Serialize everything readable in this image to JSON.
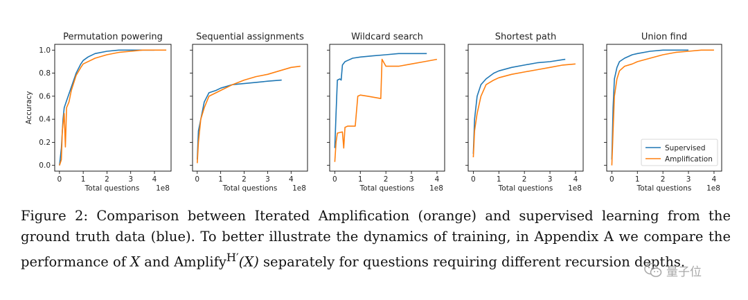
{
  "chart_data": [
    {
      "type": "line",
      "title": "Permutation powering",
      "xlabel": "Total questions",
      "ylabel": "Accuracy",
      "x_multiplier": "1e8",
      "xlim": [
        -0.2,
        4.7
      ],
      "ylim": [
        -0.05,
        1.05
      ],
      "xticks": [
        0,
        1,
        2,
        3,
        4
      ],
      "yticks": [
        0.0,
        0.2,
        0.4,
        0.6,
        0.8,
        1.0
      ],
      "grid": false,
      "series": [
        {
          "color": "#1f77b4",
          "x": [
            0.0,
            0.08,
            0.15,
            0.2,
            0.3,
            0.5,
            0.7,
            0.9,
            1.0,
            1.2,
            1.5,
            2.0,
            2.5,
            3.0,
            3.5,
            4.0
          ],
          "y": [
            0.0,
            0.15,
            0.4,
            0.5,
            0.56,
            0.68,
            0.8,
            0.88,
            0.91,
            0.94,
            0.97,
            0.99,
            1.0,
            1.0,
            1.0,
            1.0
          ]
        },
        {
          "color": "#ff7f0e",
          "x": [
            0.0,
            0.08,
            0.12,
            0.2,
            0.25,
            0.3,
            0.4,
            0.5,
            0.7,
            0.9,
            1.0,
            1.5,
            2.0,
            2.5,
            3.0,
            3.5,
            4.0,
            4.5
          ],
          "y": [
            0.0,
            0.05,
            0.3,
            0.45,
            0.16,
            0.5,
            0.55,
            0.65,
            0.78,
            0.85,
            0.88,
            0.93,
            0.96,
            0.98,
            0.99,
            1.0,
            1.0,
            1.0
          ]
        }
      ]
    },
    {
      "type": "line",
      "title": "Sequential assignments",
      "xlabel": "Total questions",
      "ylabel": "",
      "x_multiplier": "1e8",
      "xlim": [
        -0.2,
        4.7
      ],
      "ylim": [
        -0.05,
        1.05
      ],
      "xticks": [
        0,
        1,
        2,
        3,
        4
      ],
      "yticks": [
        0.0,
        0.2,
        0.4,
        0.6,
        0.8,
        1.0
      ],
      "grid": false,
      "series": [
        {
          "color": "#1f77b4",
          "x": [
            0.0,
            0.05,
            0.1,
            0.2,
            0.3,
            0.5,
            0.8,
            1.0,
            1.5,
            2.0,
            2.5,
            3.0,
            3.6
          ],
          "y": [
            0.05,
            0.3,
            0.35,
            0.45,
            0.55,
            0.63,
            0.65,
            0.67,
            0.7,
            0.71,
            0.72,
            0.73,
            0.74
          ]
        },
        {
          "color": "#ff7f0e",
          "x": [
            0.0,
            0.05,
            0.15,
            0.3,
            0.5,
            0.8,
            1.0,
            1.5,
            2.0,
            2.5,
            3.0,
            3.5,
            4.0,
            4.4
          ],
          "y": [
            0.02,
            0.2,
            0.4,
            0.5,
            0.6,
            0.63,
            0.65,
            0.7,
            0.74,
            0.77,
            0.79,
            0.82,
            0.85,
            0.86
          ]
        }
      ]
    },
    {
      "type": "line",
      "title": "Wildcard search",
      "xlabel": "Total questions",
      "ylabel": "",
      "x_multiplier": "1e8",
      "xlim": [
        -0.2,
        4.3
      ],
      "ylim": [
        -0.05,
        1.05
      ],
      "xticks": [
        0,
        1,
        2,
        3,
        4
      ],
      "yticks": [
        0.0,
        0.2,
        0.4,
        0.6,
        0.8,
        1.0
      ],
      "grid": false,
      "series": [
        {
          "color": "#1f77b4",
          "x": [
            0.0,
            0.05,
            0.1,
            0.2,
            0.25,
            0.3,
            0.4,
            0.5,
            0.7,
            1.0,
            1.5,
            2.0,
            2.5,
            3.0,
            3.6
          ],
          "y": [
            0.15,
            0.45,
            0.74,
            0.75,
            0.74,
            0.87,
            0.9,
            0.91,
            0.93,
            0.94,
            0.95,
            0.96,
            0.97,
            0.97,
            0.97
          ]
        },
        {
          "color": "#ff7f0e",
          "x": [
            0.0,
            0.05,
            0.1,
            0.3,
            0.35,
            0.4,
            0.5,
            0.8,
            0.9,
            1.0,
            1.3,
            1.8,
            1.85,
            2.0,
            2.5,
            3.0,
            3.5,
            4.0
          ],
          "y": [
            0.03,
            0.2,
            0.28,
            0.29,
            0.15,
            0.33,
            0.34,
            0.34,
            0.6,
            0.61,
            0.6,
            0.58,
            0.92,
            0.86,
            0.86,
            0.88,
            0.9,
            0.92
          ]
        }
      ]
    },
    {
      "type": "line",
      "title": "Shortest path",
      "xlabel": "Total questions",
      "ylabel": "",
      "x_multiplier": "1e8",
      "xlim": [
        -0.2,
        4.3
      ],
      "ylim": [
        -0.05,
        1.05
      ],
      "xticks": [
        0,
        1,
        2,
        3,
        4
      ],
      "yticks": [
        0.0,
        0.2,
        0.4,
        0.6,
        0.8,
        1.0
      ],
      "grid": false,
      "series": [
        {
          "color": "#1f77b4",
          "x": [
            0.0,
            0.05,
            0.15,
            0.3,
            0.5,
            0.8,
            1.0,
            1.5,
            2.0,
            2.5,
            3.0,
            3.6
          ],
          "y": [
            0.1,
            0.4,
            0.6,
            0.7,
            0.75,
            0.8,
            0.82,
            0.85,
            0.87,
            0.89,
            0.9,
            0.92
          ]
        },
        {
          "color": "#ff7f0e",
          "x": [
            0.0,
            0.05,
            0.15,
            0.3,
            0.5,
            0.8,
            1.0,
            1.5,
            2.0,
            2.5,
            3.0,
            3.5,
            4.0
          ],
          "y": [
            0.07,
            0.3,
            0.45,
            0.6,
            0.7,
            0.74,
            0.76,
            0.79,
            0.81,
            0.83,
            0.85,
            0.87,
            0.88
          ]
        }
      ]
    },
    {
      "type": "line",
      "title": "Union find",
      "xlabel": "Total questions",
      "ylabel": "",
      "x_multiplier": "1e8",
      "xlim": [
        -0.2,
        4.3
      ],
      "ylim": [
        -0.05,
        1.05
      ],
      "xticks": [
        0,
        1,
        2,
        3,
        4
      ],
      "yticks": [
        0.0,
        0.2,
        0.4,
        0.6,
        0.8,
        1.0
      ],
      "grid": false,
      "legend": {
        "position": "lower-right"
      },
      "series": [
        {
          "name": "Supervised",
          "color": "#1f77b4",
          "x": [
            0.0,
            0.05,
            0.1,
            0.2,
            0.3,
            0.5,
            0.8,
            1.0,
            1.5,
            2.0,
            2.5,
            3.0
          ],
          "y": [
            0.05,
            0.5,
            0.75,
            0.85,
            0.9,
            0.93,
            0.96,
            0.97,
            0.99,
            1.0,
            1.0,
            1.0
          ]
        },
        {
          "name": "Amplification",
          "color": "#ff7f0e",
          "x": [
            0.0,
            0.05,
            0.1,
            0.2,
            0.3,
            0.5,
            0.8,
            1.0,
            1.5,
            2.0,
            2.5,
            3.0,
            3.5,
            4.0
          ],
          "y": [
            0.0,
            0.3,
            0.6,
            0.75,
            0.82,
            0.86,
            0.88,
            0.9,
            0.93,
            0.96,
            0.98,
            0.99,
            1.0,
            1.0
          ]
        }
      ]
    }
  ],
  "caption": {
    "part1": "Figure 2: Comparison between Iterated Amplification (orange) and supervised learning from the ground truth data (blue). To better illustrate the dynamics of training, in Appendix A we compare the performance of ",
    "var_x": "X",
    "and": " and ",
    "amplify": "Amplify",
    "sup": "H′",
    "arg": "(X)",
    "part2": " separately for questions requiring different recursion depths."
  },
  "watermark": {
    "text": "量子位",
    "icon": "wechat-icon"
  }
}
